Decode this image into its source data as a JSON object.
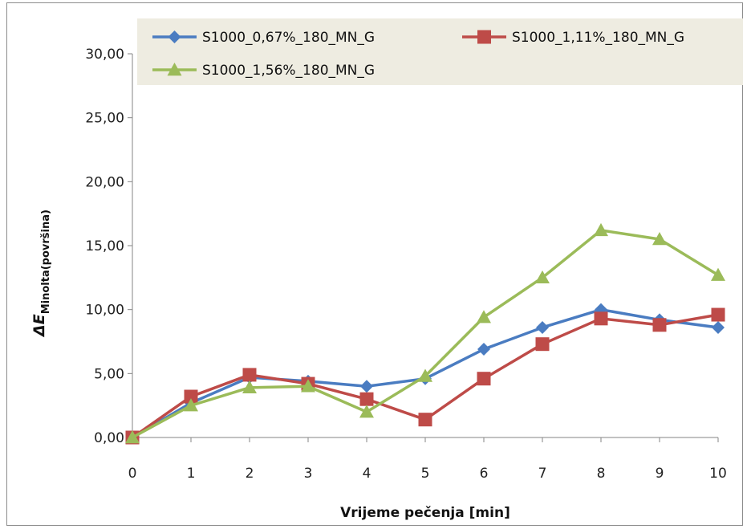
{
  "chart_data": {
    "type": "line",
    "xlabel": "Vrijeme pečenja [min]",
    "ylabel": {
      "main": "ΔE",
      "sub": "Minolta(površina)"
    },
    "x": [
      0,
      1,
      2,
      3,
      4,
      5,
      6,
      7,
      8,
      9,
      10
    ],
    "ylim": [
      0,
      30
    ],
    "yticks": [
      "0,00",
      "5,00",
      "10,00",
      "15,00",
      "20,00",
      "25,00",
      "30,00"
    ],
    "xticks": [
      "0",
      "1",
      "2",
      "3",
      "4",
      "5",
      "6",
      "7",
      "8",
      "9",
      "10"
    ],
    "grid": false,
    "legend_position": "top",
    "series": [
      {
        "name": "S1000_0,67%_180_MN_G",
        "color": "#4a7cc1",
        "marker": "diamond",
        "values": [
          0.0,
          2.7,
          4.7,
          4.4,
          4.0,
          4.6,
          6.9,
          8.6,
          10.0,
          9.2,
          8.6
        ]
      },
      {
        "name": "S1000_1,11%_180_MN_G",
        "color": "#be4b48",
        "marker": "square",
        "values": [
          0.0,
          3.2,
          4.9,
          4.2,
          3.0,
          1.4,
          4.6,
          7.3,
          9.3,
          8.8,
          9.6
        ]
      },
      {
        "name": "S1000_1,56%_180_MN_G",
        "color": "#9bbb59",
        "marker": "triangle",
        "values": [
          0.0,
          2.5,
          3.9,
          4.0,
          2.0,
          4.8,
          9.4,
          12.5,
          16.2,
          15.5,
          12.7
        ]
      }
    ]
  }
}
